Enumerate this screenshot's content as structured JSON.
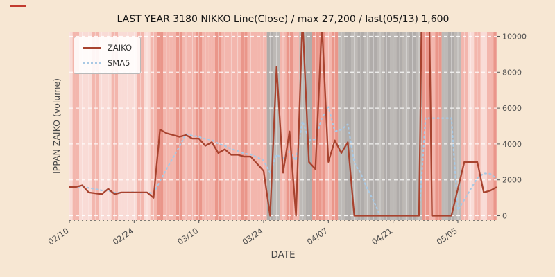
{
  "colors": {
    "figure_bg": "#f7e7d3",
    "zaiko_line": "#a8432f",
    "sma5_line": "#a9c9e4",
    "grid": "#ffffff",
    "tick_text": "#4d4d4d",
    "corner_mark": "#c23b2e"
  },
  "legend": {
    "items": [
      "ZAIKO",
      "SMA5"
    ]
  },
  "chart_data": {
    "type": "line",
    "title": "LAST YEAR 3180 NIKKO Line(Close) / max 27,200 / last(05/13) 1,600",
    "xlabel": "DATE",
    "ylabel": "IPPAN ZAIKO (volume)",
    "ylim": [
      0,
      10200
    ],
    "grid": true,
    "legend_position": "upper left",
    "x_ticks": [
      "02/10",
      "02/24",
      "03/10",
      "03/24",
      "04/07",
      "04/21",
      "05/05"
    ],
    "y_ticks": [
      0,
      2000,
      4000,
      6000,
      8000,
      10000
    ],
    "max_value": 27200,
    "last_value": 1600,
    "last_date": "05/13",
    "dates": [
      "02/10",
      "02/11",
      "02/14",
      "02/15",
      "02/16",
      "02/17",
      "02/18",
      "02/21",
      "02/22",
      "02/23",
      "02/24",
      "02/25",
      "02/28",
      "03/01",
      "03/02",
      "03/03",
      "03/04",
      "03/07",
      "03/08",
      "03/09",
      "03/10",
      "03/11",
      "03/14",
      "03/15",
      "03/16",
      "03/17",
      "03/18",
      "03/21",
      "03/22",
      "03/23",
      "03/24",
      "03/25",
      "03/28",
      "03/29",
      "03/30",
      "03/31",
      "04/01",
      "04/04",
      "04/05",
      "04/06",
      "04/07",
      "04/08",
      "04/11",
      "04/12",
      "04/13",
      "04/14",
      "04/15",
      "04/18",
      "04/19",
      "04/20",
      "04/21",
      "04/22",
      "04/25",
      "04/26",
      "04/27",
      "04/28",
      "04/29",
      "05/02",
      "05/03",
      "05/04",
      "05/05",
      "05/06",
      "05/09",
      "05/10",
      "05/11",
      "05/12",
      "05/13"
    ],
    "series": [
      {
        "name": "ZAIKO",
        "color": "#a8432f",
        "style": "solid",
        "values": [
          1600,
          1600,
          1700,
          1300,
          1250,
          1200,
          1500,
          1200,
          1300,
          1300,
          1300,
          1300,
          1300,
          1000,
          4800,
          4600,
          4500,
          4400,
          4500,
          4300,
          4300,
          3900,
          4100,
          3500,
          3700,
          3400,
          3400,
          3300,
          3300,
          2900,
          2500,
          0,
          8300,
          2400,
          4700,
          0,
          11000,
          3000,
          2600,
          10700,
          3000,
          4200,
          3500,
          4100,
          0,
          0,
          0,
          0,
          0,
          0,
          0,
          0,
          0,
          0,
          0,
          27200,
          0,
          0,
          0,
          0,
          1500,
          3000,
          3000,
          3000,
          1300,
          1400,
          1600
        ]
      },
      {
        "name": "SMA5",
        "color": "#a9c9e4",
        "style": "dotted",
        "values": [
          1600,
          1600,
          1633,
          1550,
          1490,
          1410,
          1390,
          1290,
          1290,
          1300,
          1320,
          1280,
          1300,
          1240,
          1940,
          2600,
          3240,
          3860,
          4560,
          4460,
          4400,
          4280,
          4220,
          4020,
          3900,
          3720,
          3620,
          3460,
          3420,
          3260,
          3080,
          2400,
          3400,
          3220,
          3580,
          3080,
          5280,
          4220,
          4260,
          5460,
          6060,
          4700,
          4800,
          5100,
          2960,
          2360,
          1520,
          820,
          0,
          0,
          0,
          0,
          0,
          0,
          0,
          5440,
          5440,
          5440,
          5440,
          5440,
          300,
          900,
          1500,
          2100,
          2360,
          2340,
          2060
        ]
      }
    ],
    "background_bands": {
      "palette": {
        "lp": "#f9dbd6",
        "mp": "#f3b6ad",
        "rp": "#ea968a",
        "gy": "#b7b3b0"
      },
      "codes": [
        "lp",
        "mp",
        "lp",
        "lp",
        "mp",
        "lp",
        "lp",
        "mp",
        "lp",
        "lp",
        "lp",
        "mp",
        "lp",
        "mp",
        "rp",
        "mp",
        "mp",
        "rp",
        "mp",
        "mp",
        "rp",
        "mp",
        "mp",
        "rp",
        "mp",
        "mp",
        "mp",
        "rp",
        "mp",
        "mp",
        "mp",
        "gy",
        "gy",
        "mp",
        "rp",
        "mp",
        "gy",
        "gy",
        "rp",
        "rp",
        "mp",
        "rp",
        "gy",
        "gy",
        "gy",
        "gy",
        "gy",
        "gy",
        "gy",
        "gy",
        "gy",
        "gy",
        "gy",
        "gy",
        "gy",
        "rp",
        "mp",
        "rp",
        "gy",
        "gy",
        "gy",
        "mp",
        "lp",
        "mp",
        "lp",
        "mp",
        "rp"
      ]
    }
  }
}
